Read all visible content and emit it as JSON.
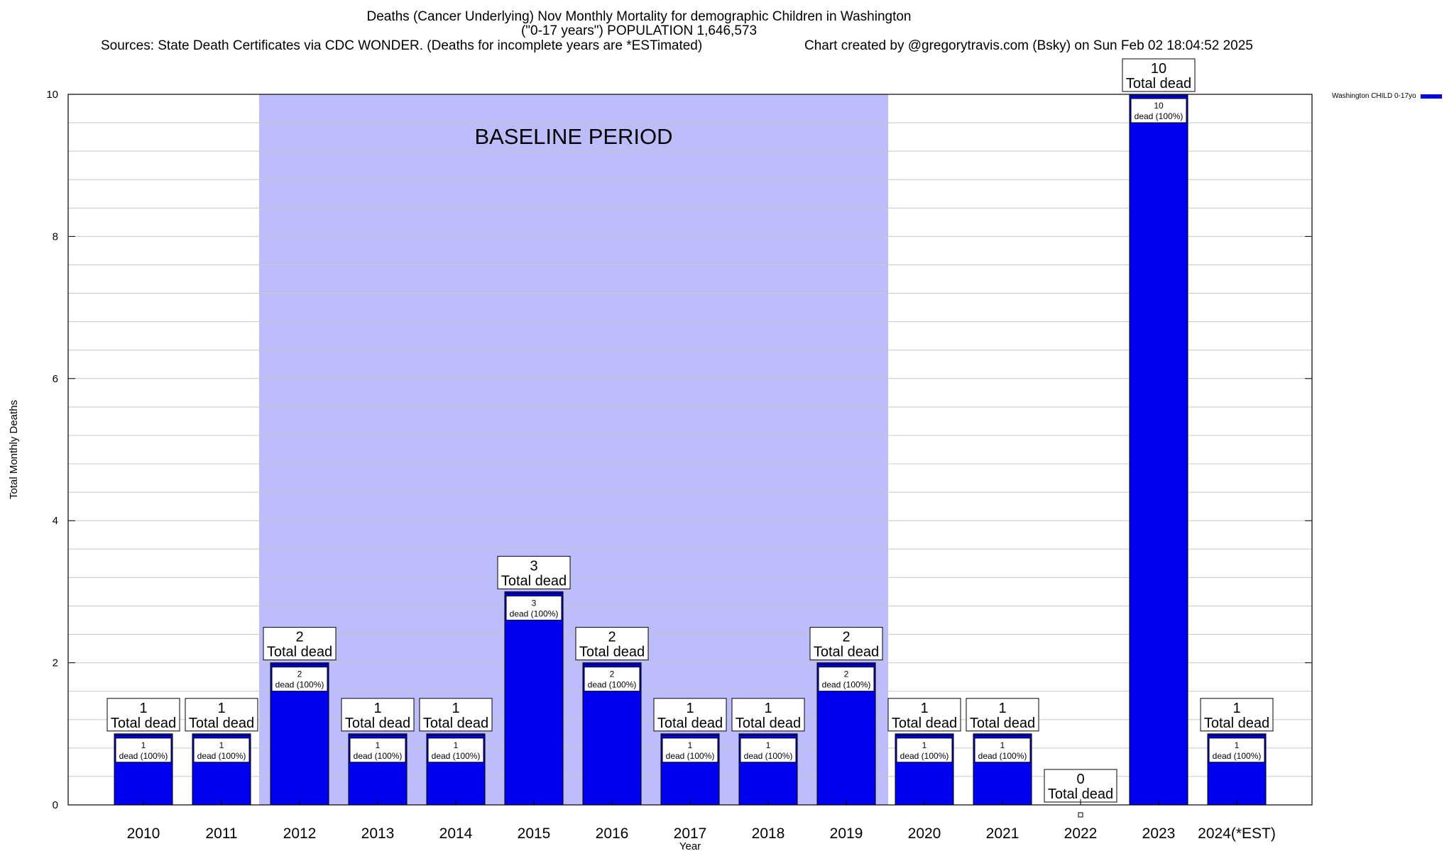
{
  "chart_data": {
    "type": "bar",
    "title_line1": "Deaths (Cancer Underlying) Nov Monthly Mortality for demographic Children in Washington",
    "title_line2": "(\"0-17 years\") POPULATION 1,646,573",
    "sources": "Sources: State Death Certificates via CDC WONDER. (Deaths for incomplete years are *ESTimated)",
    "credit": "Chart created by @gregorytravis.com (Bsky) on Sun Feb 02 18:04:52 2025",
    "xlabel": "Year",
    "ylabel": "Total Monthly Deaths",
    "ylim": [
      0,
      10
    ],
    "yticks": [
      "0",
      "2",
      "4",
      "6",
      "8",
      "10"
    ],
    "categories": [
      "2010",
      "2011",
      "2012",
      "2013",
      "2014",
      "2015",
      "2016",
      "2017",
      "2018",
      "2019",
      "2020",
      "2021",
      "2022",
      "2023",
      "2024(*EST)"
    ],
    "series": [
      {
        "name": "Washington CHILD 0-17yo",
        "values": [
          1,
          1,
          2,
          1,
          1,
          3,
          2,
          1,
          1,
          2,
          1,
          1,
          0,
          10,
          1
        ]
      }
    ],
    "total_label": "Total dead",
    "inner_label": "dead (100%)",
    "baseline": {
      "label": "BASELINE PERIOD",
      "from": "2012",
      "to": "2019"
    },
    "colors": {
      "bar": "#0000ee",
      "baseline_fill": "#bdbdfb",
      "grid": "#c8c8c8"
    }
  }
}
